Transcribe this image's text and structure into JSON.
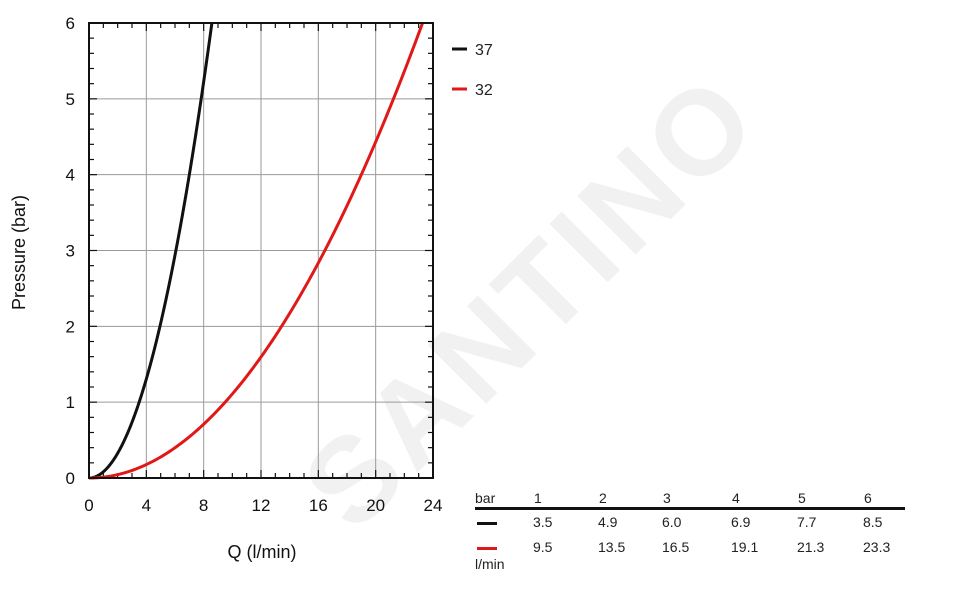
{
  "chart_data": {
    "type": "line",
    "xlabel": "Q (l/min)",
    "ylabel": "Pressure (bar)",
    "xlim": [
      0,
      24
    ],
    "ylim": [
      0,
      6
    ],
    "xticks": [
      "0",
      "4",
      "8",
      "12",
      "16",
      "20",
      "24"
    ],
    "yticks": [
      "0",
      "1",
      "2",
      "3",
      "4",
      "5",
      "6"
    ],
    "grid": true,
    "legend_position": "right",
    "series": [
      {
        "name": "37",
        "color": "#111111",
        "points": [
          [
            0,
            0
          ],
          [
            3.5,
            1
          ],
          [
            4.9,
            2
          ],
          [
            6.0,
            3
          ],
          [
            6.9,
            4
          ],
          [
            7.7,
            5
          ],
          [
            8.5,
            6
          ]
        ]
      },
      {
        "name": "32",
        "color": "#e01818",
        "points": [
          [
            0,
            0
          ],
          [
            9.5,
            1
          ],
          [
            13.5,
            2
          ],
          [
            16.5,
            3
          ],
          [
            19.1,
            4
          ],
          [
            21.3,
            5
          ],
          [
            23.3,
            6
          ]
        ]
      }
    ]
  },
  "flow_table": {
    "header_label": "bar",
    "unit_label": "l/min",
    "pressures": [
      "1",
      "2",
      "3",
      "4",
      "5",
      "6"
    ],
    "rows": [
      {
        "color": "#111111",
        "values": [
          "3.5",
          "4.9",
          "6.0",
          "6.9",
          "7.7",
          "8.5"
        ]
      },
      {
        "color": "#e01818",
        "values": [
          "9.5",
          "13.5",
          "16.5",
          "19.1",
          "21.3",
          "23.3"
        ]
      }
    ]
  },
  "watermark": {
    "text": "SANTINO"
  }
}
